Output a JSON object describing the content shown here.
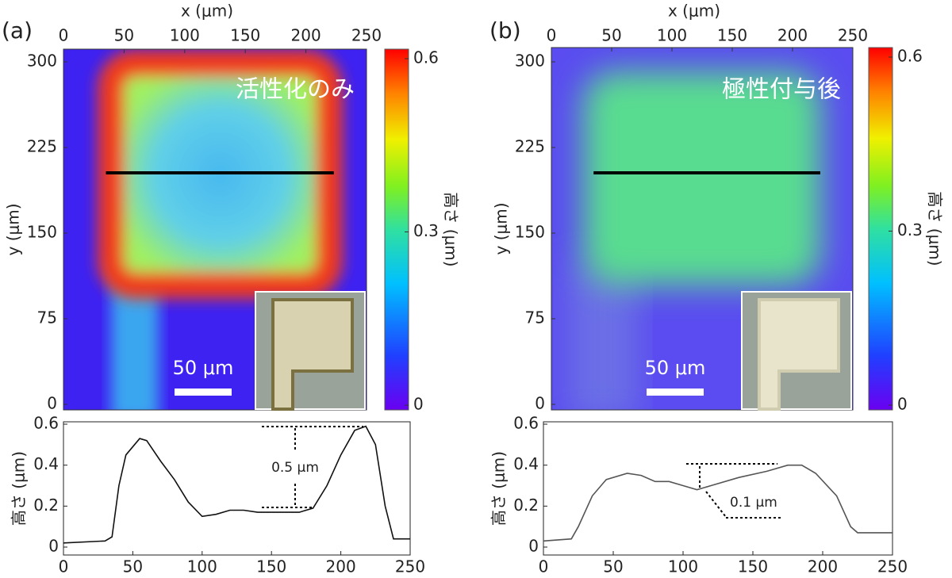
{
  "chart_data": [
    {
      "type": "heatmap",
      "panel_label": "(a)",
      "xlabel": "x (μm)",
      "ylabel": "y (μm)",
      "xlim": [
        0,
        250
      ],
      "xticks": [
        0,
        50,
        100,
        150,
        200,
        250
      ],
      "ylim": [
        0,
        300
      ],
      "yticks": [
        0,
        75,
        150,
        225,
        300
      ],
      "colorbar_label": "高さ (μm)",
      "colorbar_lim": [
        0,
        0.6
      ],
      "colorbar_ticks": [
        0,
        0.3,
        0.6
      ],
      "overlay_label": "活性化のみ",
      "scale_bar_label": "50 μm"
    },
    {
      "type": "line",
      "ylabel": "高さ (μm)",
      "xlim": [
        0,
        250
      ],
      "xticks": [
        0,
        50,
        100,
        150,
        200,
        250
      ],
      "ylim": [
        0,
        0.6
      ],
      "yticks": [
        0,
        0.2,
        0.4,
        0.6
      ],
      "annotation": "0.5 μm",
      "x": [
        0,
        30,
        35,
        40,
        45,
        55,
        60,
        70,
        80,
        90,
        100,
        110,
        120,
        130,
        140,
        150,
        160,
        170,
        180,
        190,
        200,
        210,
        218,
        225,
        232,
        238,
        250
      ],
      "series": [
        {
          "color": "#111111",
          "values": [
            0.02,
            0.03,
            0.05,
            0.3,
            0.45,
            0.53,
            0.52,
            0.42,
            0.33,
            0.22,
            0.15,
            0.16,
            0.18,
            0.18,
            0.17,
            0.17,
            0.17,
            0.17,
            0.19,
            0.3,
            0.45,
            0.57,
            0.59,
            0.5,
            0.2,
            0.04,
            0.04
          ]
        }
      ]
    },
    {
      "type": "heatmap",
      "panel_label": "(b)",
      "xlabel": "x (μm)",
      "ylabel": "y (μm)",
      "xlim": [
        0,
        250
      ],
      "xticks": [
        0,
        50,
        100,
        150,
        200,
        250
      ],
      "ylim": [
        0,
        300
      ],
      "yticks": [
        0,
        75,
        150,
        225,
        300
      ],
      "colorbar_label": "高さ (μm)",
      "colorbar_lim": [
        0,
        0.6
      ],
      "colorbar_ticks": [
        0,
        0.3,
        0.6
      ],
      "overlay_label": "極性付与後",
      "scale_bar_label": "50 μm"
    },
    {
      "type": "line",
      "ylabel": "高さ (μm)",
      "xlim": [
        0,
        250
      ],
      "xticks": [
        0,
        50,
        100,
        150,
        200,
        250
      ],
      "ylim": [
        0,
        0.6
      ],
      "yticks": [
        0,
        0.2,
        0.4,
        0.6
      ],
      "annotation": "0.1 μm",
      "x": [
        0,
        20,
        25,
        35,
        45,
        60,
        70,
        80,
        90,
        100,
        110,
        120,
        140,
        160,
        175,
        185,
        195,
        210,
        220,
        225,
        250
      ],
      "series": [
        {
          "color": "#555555",
          "values": [
            0.03,
            0.04,
            0.1,
            0.25,
            0.33,
            0.36,
            0.35,
            0.32,
            0.32,
            0.3,
            0.28,
            0.3,
            0.34,
            0.37,
            0.4,
            0.4,
            0.36,
            0.25,
            0.1,
            0.07,
            0.07
          ]
        }
      ]
    }
  ]
}
